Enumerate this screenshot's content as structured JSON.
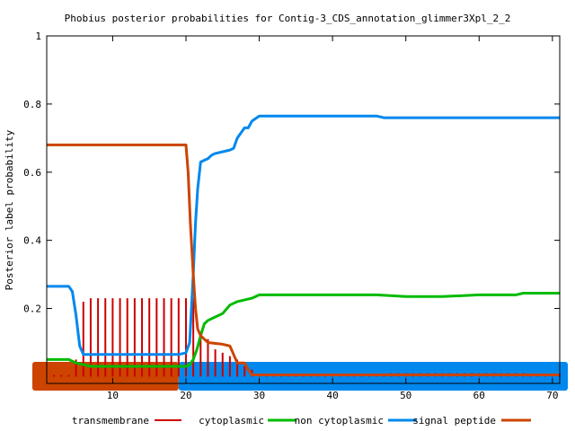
{
  "chart_data": {
    "type": "line",
    "title": "Phobius posterior probabilities for Contig-3_CDS_annotation_glimmer3Xpl_2_2",
    "xlabel": "",
    "ylabel": "Posterior label probability",
    "xlim": [
      1,
      71
    ],
    "ylim": [
      -0.02,
      1
    ],
    "xticks": [
      10,
      20,
      30,
      40,
      50,
      60,
      70
    ],
    "xtick_labels": [
      "10",
      "20",
      "30",
      "40",
      "50",
      "60",
      "70"
    ],
    "yticks": [
      0.2,
      0.4,
      0.6,
      0.8,
      1
    ],
    "ytick_labels": [
      "0.2",
      "0.4",
      "0.6",
      "0.8",
      "1"
    ],
    "grid": false,
    "legend_position": "bottom",
    "series": [
      {
        "name": "transmembrane",
        "color": "#cc0000",
        "style": "impulses",
        "x": [
          2,
          3,
          4,
          5,
          6,
          7,
          8,
          9,
          10,
          11,
          12,
          13,
          14,
          15,
          16,
          17,
          18,
          19,
          20,
          21,
          22,
          23,
          24,
          25,
          26,
          27,
          28,
          29,
          30,
          31,
          32,
          33,
          34,
          35,
          36,
          37,
          38,
          39,
          40,
          41,
          42,
          43,
          44,
          45,
          46,
          47,
          48,
          49,
          50,
          51,
          52,
          53,
          54,
          55,
          56,
          57,
          58,
          59,
          60,
          61,
          62,
          63,
          64,
          65,
          66,
          67,
          68,
          69,
          70,
          71
        ],
        "values": [
          0.005,
          0.005,
          0.005,
          0.05,
          0.22,
          0.23,
          0.23,
          0.23,
          0.23,
          0.23,
          0.23,
          0.23,
          0.23,
          0.23,
          0.23,
          0.23,
          0.23,
          0.23,
          0.23,
          0.23,
          0.12,
          0.11,
          0.08,
          0.07,
          0.06,
          0.05,
          0.03,
          0.02,
          0.005,
          0.005,
          0.005,
          0.005,
          0.005,
          0.005,
          0.005,
          0.005,
          0.005,
          0.005,
          0.005,
          0.005,
          0.005,
          0.005,
          0.005,
          0.005,
          0.005,
          0.005,
          0.01,
          0.01,
          0.01,
          0.01,
          0.01,
          0.01,
          0.01,
          0.01,
          0.01,
          0.01,
          0.01,
          0.01,
          0.01,
          0.01,
          0.01,
          0.01,
          0.01,
          0.01,
          0.01,
          0.005,
          0.005,
          0.005,
          0.005,
          0.005
        ]
      },
      {
        "name": "cytoplasmic",
        "color": "#00bb00",
        "style": "line",
        "x": [
          1,
          4,
          5,
          6,
          7,
          10,
          15,
          19,
          20,
          20.5,
          21,
          21.5,
          22,
          22.5,
          23,
          24,
          25,
          26,
          26.5,
          27,
          29,
          30,
          35,
          40,
          46,
          50,
          55,
          60,
          65,
          66,
          71
        ],
        "values": [
          0.05,
          0.05,
          0.04,
          0.035,
          0.03,
          0.03,
          0.03,
          0.03,
          0.03,
          0.035,
          0.05,
          0.08,
          0.12,
          0.155,
          0.165,
          0.175,
          0.185,
          0.21,
          0.215,
          0.22,
          0.23,
          0.24,
          0.24,
          0.24,
          0.24,
          0.235,
          0.235,
          0.24,
          0.24,
          0.245,
          0.245
        ]
      },
      {
        "name": "non cytoplasmic",
        "color": "#0088ee",
        "style": "line",
        "x": [
          1,
          4,
          4.5,
          5,
          5.5,
          6,
          10,
          15,
          19,
          20,
          20.5,
          21,
          21.3,
          21.6,
          22,
          22.5,
          23,
          23.5,
          24,
          26,
          26.5,
          27,
          28,
          28.5,
          29,
          30,
          35,
          40,
          46,
          47,
          50,
          55,
          60,
          71
        ],
        "values": [
          0.265,
          0.265,
          0.25,
          0.18,
          0.09,
          0.065,
          0.065,
          0.065,
          0.065,
          0.07,
          0.1,
          0.3,
          0.45,
          0.55,
          0.63,
          0.635,
          0.64,
          0.65,
          0.655,
          0.665,
          0.67,
          0.7,
          0.73,
          0.73,
          0.75,
          0.765,
          0.765,
          0.765,
          0.765,
          0.76,
          0.76,
          0.76,
          0.76,
          0.76
        ]
      },
      {
        "name": "signal peptide",
        "color": "#cc4400",
        "style": "line",
        "x": [
          1,
          10,
          19,
          20,
          20.3,
          20.6,
          21,
          21.3,
          21.6,
          22,
          23,
          25,
          26,
          27,
          28,
          28.5,
          29,
          30,
          35,
          40,
          50,
          60,
          71
        ],
        "values": [
          0.68,
          0.68,
          0.68,
          0.68,
          0.6,
          0.45,
          0.3,
          0.2,
          0.14,
          0.12,
          0.1,
          0.095,
          0.09,
          0.04,
          0.04,
          0.02,
          0.005,
          0.005,
          0.005,
          0.005,
          0.005,
          0.005,
          0.005
        ]
      }
    ],
    "topology_bars": [
      {
        "label": "signal peptide",
        "color": "#cc4400",
        "x_start": 1,
        "x_end": 19
      },
      {
        "label": "non cytoplasmic",
        "color": "#0088ee",
        "x_start": 19,
        "x_end": 71
      }
    ]
  }
}
